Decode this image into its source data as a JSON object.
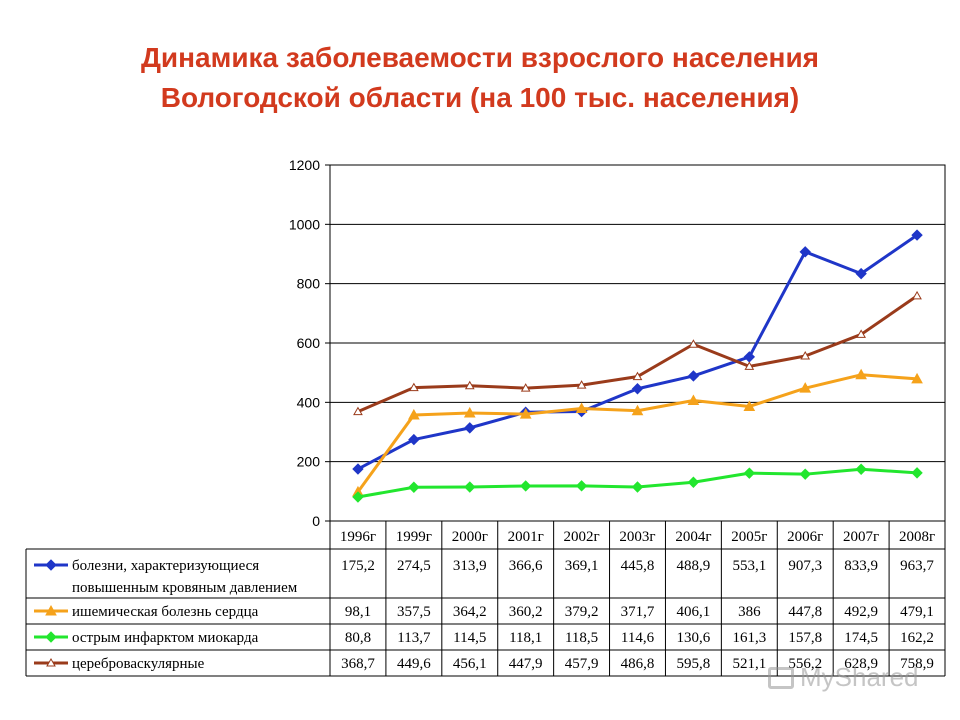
{
  "title_line1": "Динамика заболеваемости взрослого населения",
  "title_line2": "Вологодской области (на 100 тыс. населения)",
  "watermark_text": "MyShared",
  "chart_data": {
    "type": "line",
    "title": "Динамика заболеваемости взрослого населения Вологодской области (на 100 тыс. населения)",
    "categories": [
      "1996г",
      "1999г",
      "2000г",
      "2001г",
      "2002г",
      "2003г",
      "2004г",
      "2005г",
      "2006г",
      "2007г",
      "2008г"
    ],
    "ylim": [
      0,
      1200
    ],
    "yticks": [
      0,
      200,
      400,
      600,
      800,
      1000,
      1200
    ],
    "grid": true,
    "legend": "data-table-below",
    "series": [
      {
        "name_line1": "болезни, характеризующиеся",
        "name_line2": "повышенным кровяным давлением",
        "color": "#1f36c8",
        "marker": "diamond",
        "values": [
          175.2,
          274.5,
          313.9,
          366.6,
          369.1,
          445.8,
          488.9,
          553.1,
          907.3,
          833.9,
          963.7
        ],
        "labels": [
          "175,2",
          "274,5",
          "313,9",
          "366,6",
          "369,1",
          "445,8",
          "488,9",
          "553,1",
          "907,3",
          "833,9",
          "963,7"
        ]
      },
      {
        "name": "ишемическая болезнь сердца",
        "color": "#f5a21b",
        "marker": "triangle",
        "values": [
          98.1,
          357.5,
          364.2,
          360.2,
          379.2,
          371.7,
          406.1,
          386,
          447.8,
          492.9,
          479.1
        ],
        "labels": [
          "98,1",
          "357,5",
          "364,2",
          "360,2",
          "379,2",
          "371,7",
          "406,1",
          "386",
          "447,8",
          "492,9",
          "479,1"
        ]
      },
      {
        "name": "острым инфарктом миокарда",
        "color": "#22e62e",
        "marker": "diamond",
        "values": [
          80.8,
          113.7,
          114.5,
          118.1,
          118.5,
          114.6,
          130.6,
          161.3,
          157.8,
          174.5,
          162.2
        ],
        "labels": [
          "80,8",
          "113,7",
          "114,5",
          "118,1",
          "118,5",
          "114,6",
          "130,6",
          "161,3",
          "157,8",
          "174,5",
          "162,2"
        ]
      },
      {
        "name": "цереброваскулярные",
        "color": "#9a3b1b",
        "marker": "triangle-open",
        "values": [
          368.7,
          449.6,
          456.1,
          447.9,
          457.9,
          486.8,
          595.8,
          521.1,
          556.2,
          628.9,
          758.9
        ],
        "labels": [
          "368,7",
          "449,6",
          "456,1",
          "447,9",
          "457,9",
          "486,8",
          "595,8",
          "521,1",
          "556,2",
          "628,9",
          "758,9"
        ]
      }
    ]
  }
}
